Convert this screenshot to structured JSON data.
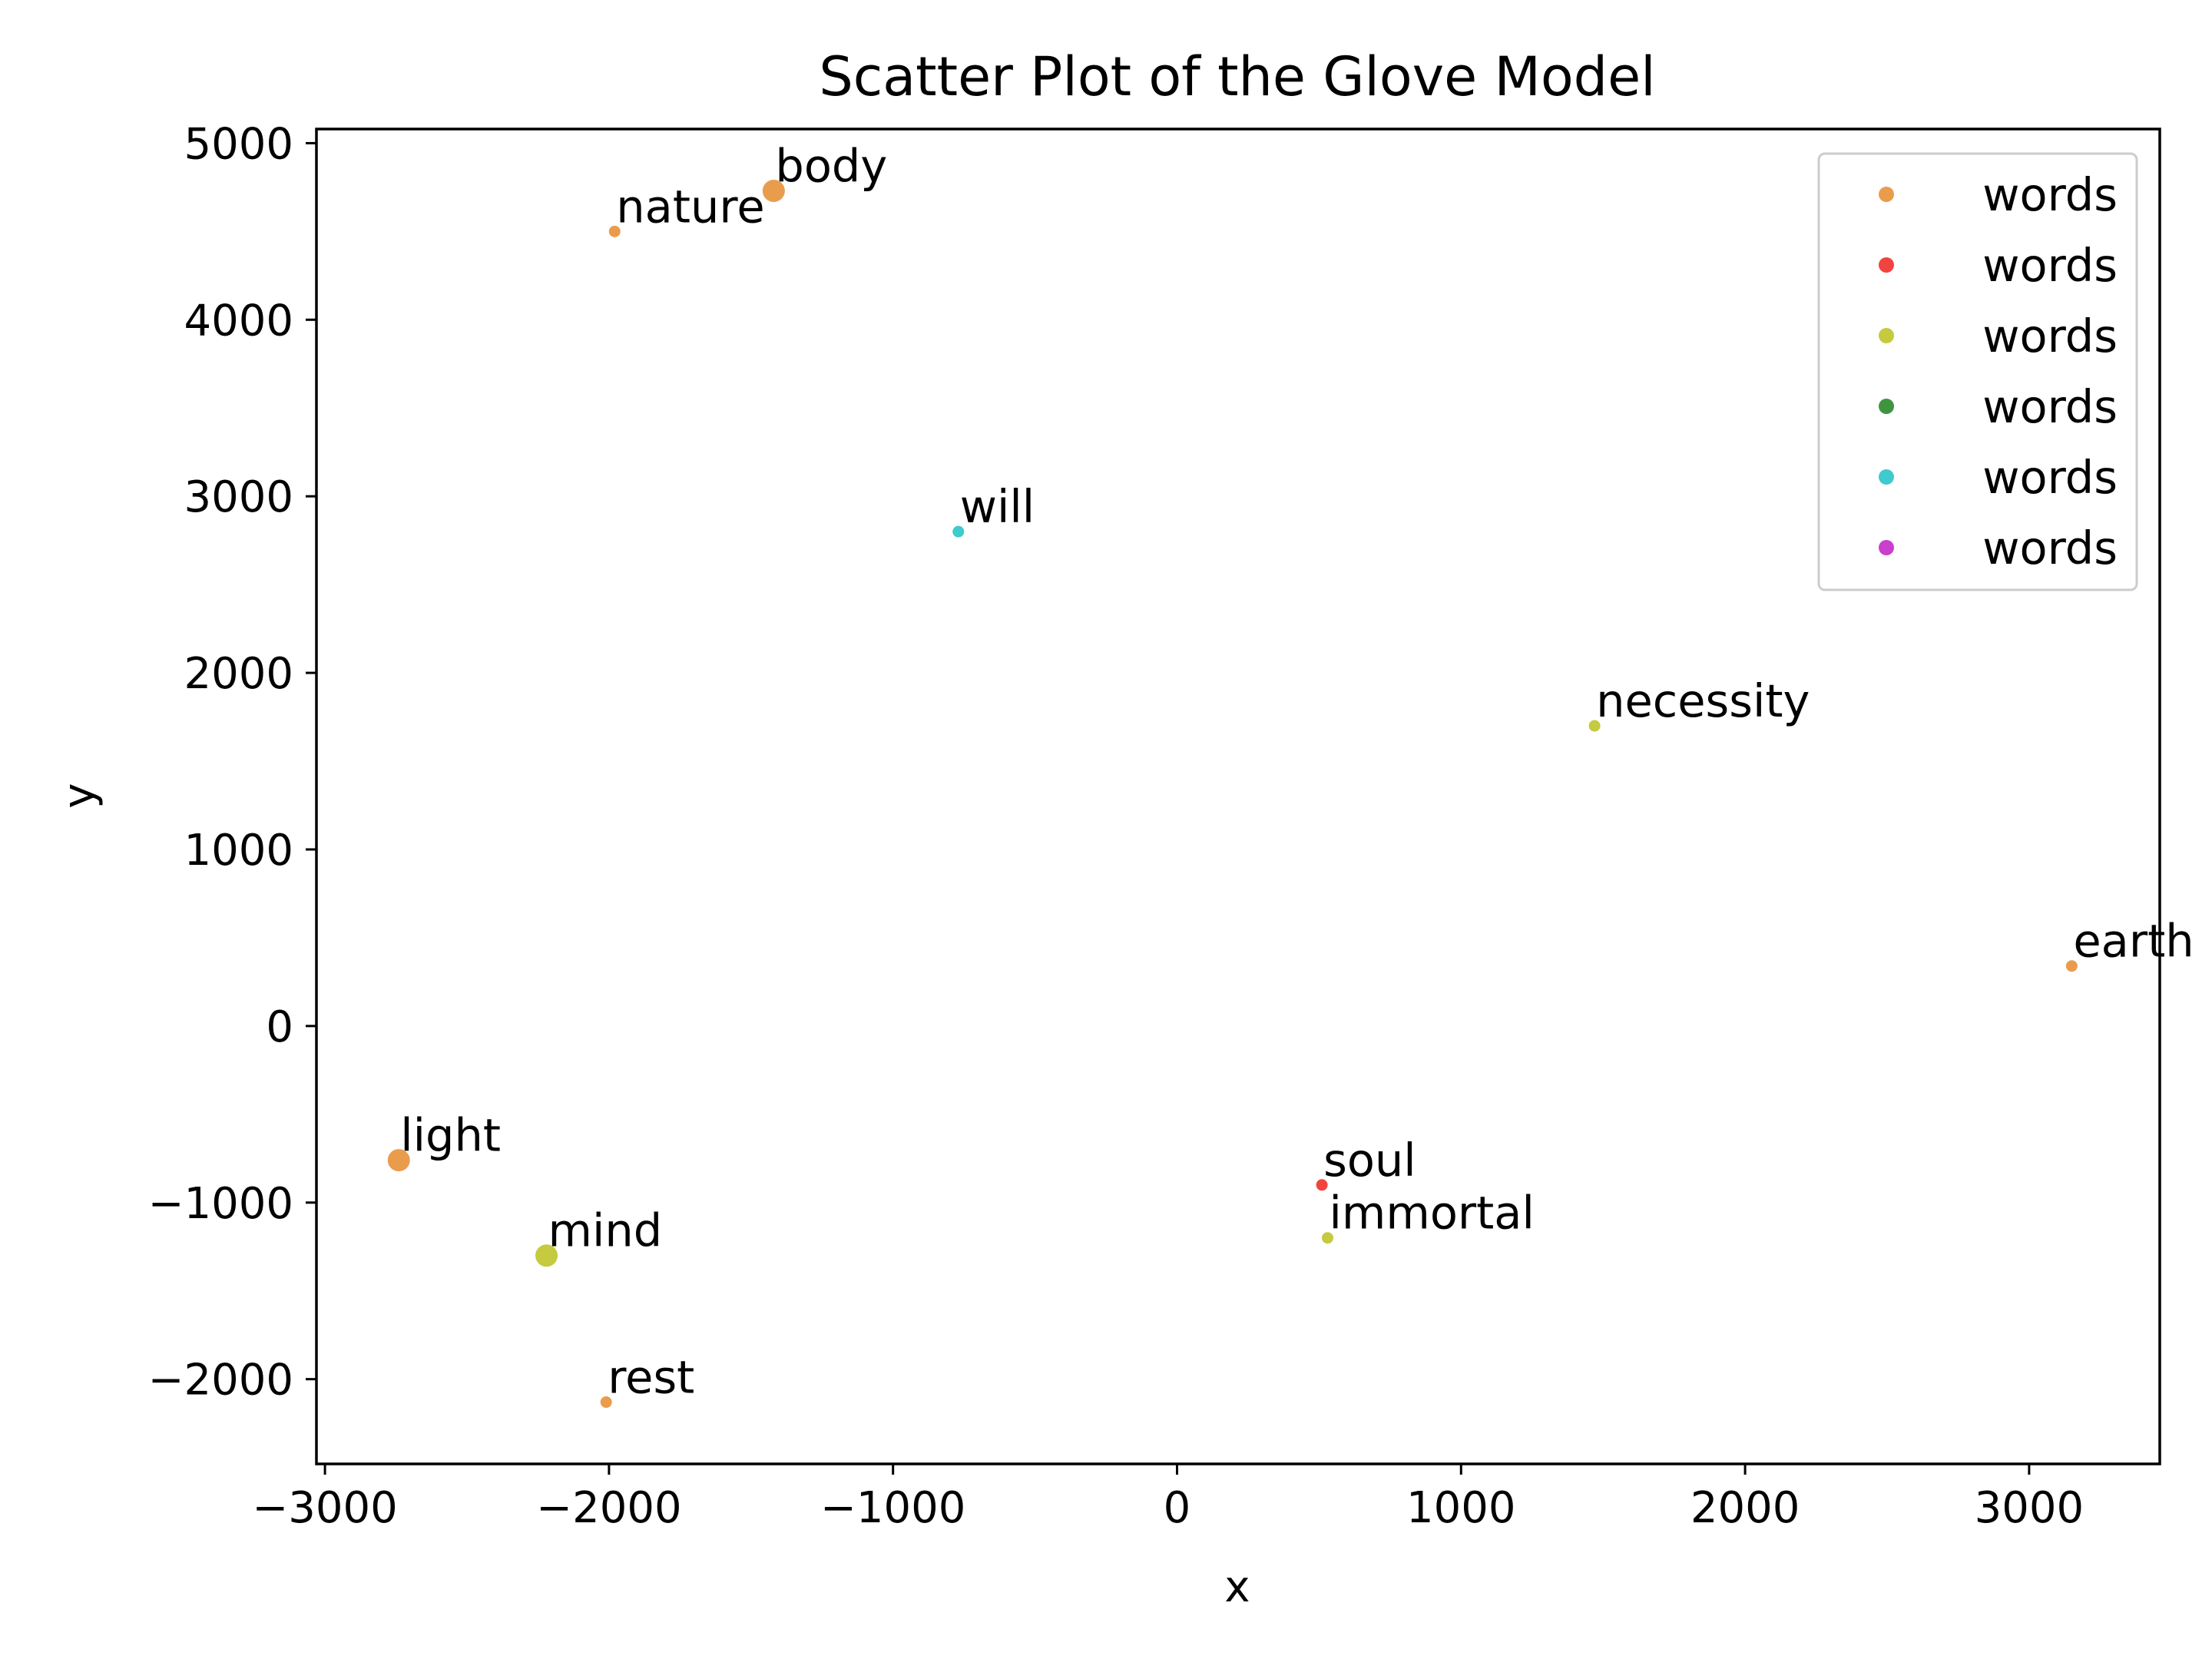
{
  "chart_data": {
    "type": "scatter",
    "title": "Scatter Plot of the Glove Model",
    "xlabel": "x",
    "ylabel": "y",
    "xlim": [
      -3030,
      3460
    ],
    "ylim": [
      -2480,
      5080
    ],
    "xticks": [
      -3000,
      -2000,
      -1000,
      0,
      1000,
      2000,
      3000
    ],
    "yticks": [
      -2000,
      -1000,
      0,
      1000,
      2000,
      3000,
      4000,
      5000
    ],
    "xtick_labels": [
      "−3000",
      "−2000",
      "−1000",
      "0",
      "1000",
      "2000",
      "3000"
    ],
    "ytick_labels": [
      "−2000",
      "−1000",
      "0",
      "1000",
      "2000",
      "3000",
      "4000",
      "5000"
    ],
    "grid": false,
    "legend_position": "top-right",
    "series": [
      {
        "name": "words",
        "color": "#e8913a",
        "points": [
          {
            "label": "body",
            "x": -1420,
            "y": 4730,
            "size": 3
          },
          {
            "label": "nature",
            "x": -1980,
            "y": 4500,
            "size": 1
          },
          {
            "label": "earth",
            "x": 3150,
            "y": 340,
            "size": 1
          },
          {
            "label": "light",
            "x": -2740,
            "y": -760,
            "size": 3
          },
          {
            "label": "rest",
            "x": -2010,
            "y": -2130,
            "size": 1
          }
        ]
      },
      {
        "name": "words",
        "color": "#f0302a",
        "points": [
          {
            "label": "soul",
            "x": 510,
            "y": -900,
            "size": 1
          }
        ]
      },
      {
        "name": "words",
        "color": "#bfc42a",
        "points": [
          {
            "label": "necessity",
            "x": 1470,
            "y": 1700,
            "size": 1
          },
          {
            "label": "immortal",
            "x": 530,
            "y": -1200,
            "size": 1
          },
          {
            "label": "mind",
            "x": -2220,
            "y": -1300,
            "size": 3
          }
        ]
      },
      {
        "name": "words",
        "color": "#2a8a2a",
        "points": []
      },
      {
        "name": "words",
        "color": "#2ac4c8",
        "points": [
          {
            "label": "will",
            "x": -770,
            "y": 2800,
            "size": 1
          }
        ]
      },
      {
        "name": "words",
        "color": "#c42ac8",
        "points": []
      }
    ]
  }
}
